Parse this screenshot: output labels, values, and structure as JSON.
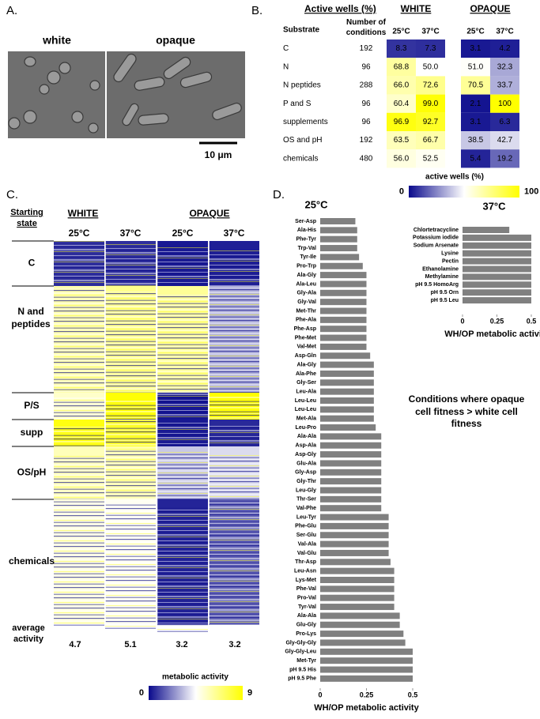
{
  "panel_a": {
    "label": "A.",
    "images": [
      "white",
      "opaque"
    ],
    "scale_bar": "10 μm"
  },
  "panel_b": {
    "label": "B.",
    "title": "Active wells (%)",
    "groups": [
      "WHITE",
      "OPAQUE"
    ],
    "header": {
      "substrate": "Substrate",
      "conditions": "Number of conditions",
      "temps": [
        "25°C",
        "37°C",
        "25°C",
        "37°C"
      ]
    },
    "rows": [
      {
        "substrate": "C",
        "conditions": 192,
        "values": [
          "8.3",
          "7.3",
          "3.1",
          "4.2"
        ]
      },
      {
        "substrate": "N",
        "conditions": 96,
        "values": [
          "68.8",
          "50.0",
          "51.0",
          "32.3"
        ]
      },
      {
        "substrate": "N peptides",
        "conditions": 288,
        "values": [
          "66.0",
          "72.6",
          "70.5",
          "33.7"
        ]
      },
      {
        "substrate": "P and S",
        "conditions": 96,
        "values": [
          "60.4",
          "99.0",
          "2.1",
          "100"
        ]
      },
      {
        "substrate": "supplements",
        "conditions": 96,
        "values": [
          "96.9",
          "92.7",
          "3.1",
          "6.3"
        ]
      },
      {
        "substrate": "OS and pH",
        "conditions": 192,
        "values": [
          "63.5",
          "66.7",
          "38.5",
          "42.7"
        ]
      },
      {
        "substrate": "chemicals",
        "conditions": 480,
        "values": [
          "56.0",
          "52.5",
          "5.4",
          "19.2"
        ]
      }
    ],
    "colorbar": {
      "label": "active wells (%)",
      "ticks": [
        0,
        100
      ]
    }
  },
  "panel_c": {
    "label": "C.",
    "row_header": "Starting state",
    "groups": [
      "WHITE",
      "OPAQUE"
    ],
    "temps": [
      "25°C",
      "37°C",
      "25°C",
      "37°C"
    ],
    "row_groups": [
      "C",
      "N and peptides",
      "P/S",
      "supp",
      "OS/pH",
      "chemicals"
    ],
    "average_label": "average activity",
    "averages": [
      4.7,
      5.1,
      3.2,
      3.2
    ],
    "colorbar": {
      "label": "metabolic activity",
      "ticks": [
        0,
        9
      ]
    }
  },
  "panel_d": {
    "label": "D.",
    "annotation": "Conditions where opaque cell fitness > white cell fitness"
  },
  "chart_data": [
    {
      "type": "bar",
      "orientation": "horizontal",
      "title": "25°C",
      "categories": [
        "Ser-Asp",
        "Ala-His",
        "Phe-Tyr",
        "Trp-Val",
        "Tyr-Ile",
        "Pro-Trp",
        "Ala-Gly",
        "Ala-Leu",
        "Gly-Ala",
        "Gly-Val",
        "Met-Thr",
        "Phe-Ala",
        "Phe-Asp",
        "Phe-Met",
        "Val-Met",
        "Asp-Gln",
        "Ala-Gly",
        "Ala-Phe",
        "Gly-Ser",
        "Leu-Ala",
        "Leu-Leu",
        "Leu-Leu",
        "Met-Ala",
        "Leu-Pro",
        "Ala-Ala",
        "Asp-Ala",
        "Asp-Gly",
        "Glu-Ala",
        "Gly-Asp",
        "Gly-Thr",
        "Leu-Gly",
        "Thr-Ser",
        "Val-Phe",
        "Leu-Tyr",
        "Phe-Glu",
        "Ser-Glu",
        "Val-Ala",
        "Val-Glu",
        "Thr-Asp",
        "Leu-Asn",
        "Lys-Met",
        "Phe-Val",
        "Pro-Val",
        "Tyr-Val",
        "Ala-Ala",
        "Glu-Gly",
        "Pro-Lys",
        "Gly-Gly-Gly",
        "Gly-Gly-Leu",
        "Met-Tyr",
        "pH 9.5 His",
        "pH 9.5 Phe"
      ],
      "values": [
        0.19,
        0.2,
        0.2,
        0.2,
        0.21,
        0.23,
        0.25,
        0.25,
        0.25,
        0.25,
        0.25,
        0.25,
        0.25,
        0.25,
        0.25,
        0.27,
        0.29,
        0.29,
        0.29,
        0.29,
        0.29,
        0.29,
        0.29,
        0.3,
        0.33,
        0.33,
        0.33,
        0.33,
        0.33,
        0.33,
        0.33,
        0.33,
        0.33,
        0.37,
        0.37,
        0.37,
        0.37,
        0.37,
        0.38,
        0.4,
        0.4,
        0.4,
        0.4,
        0.4,
        0.43,
        0.43,
        0.45,
        0.46,
        0.5,
        0.5,
        0.5,
        0.5
      ],
      "xlim": [
        0,
        0.5
      ],
      "xticks": [
        0,
        0.25,
        0.5
      ],
      "xlabel": "WH/OP metabolic activity",
      "color": "#808080"
    },
    {
      "type": "bar",
      "orientation": "horizontal",
      "title": "37°C",
      "categories": [
        "Chlortetracycline",
        "Potassium iodide",
        "Sodium Arsenate",
        "Lysine",
        "Pectin",
        "Ethanolamine",
        "Methylamine",
        "pH 9.5 HomoArg",
        "pH 9.5 Orn",
        "pH 9.5 Leu"
      ],
      "values": [
        0.34,
        0.5,
        0.5,
        0.5,
        0.5,
        0.5,
        0.5,
        0.5,
        0.5,
        0.5
      ],
      "xlim": [
        0,
        0.5
      ],
      "xticks": [
        0,
        0.25,
        0.5
      ],
      "xlabel": "WH/OP metabolic activity",
      "color": "#808080"
    }
  ]
}
